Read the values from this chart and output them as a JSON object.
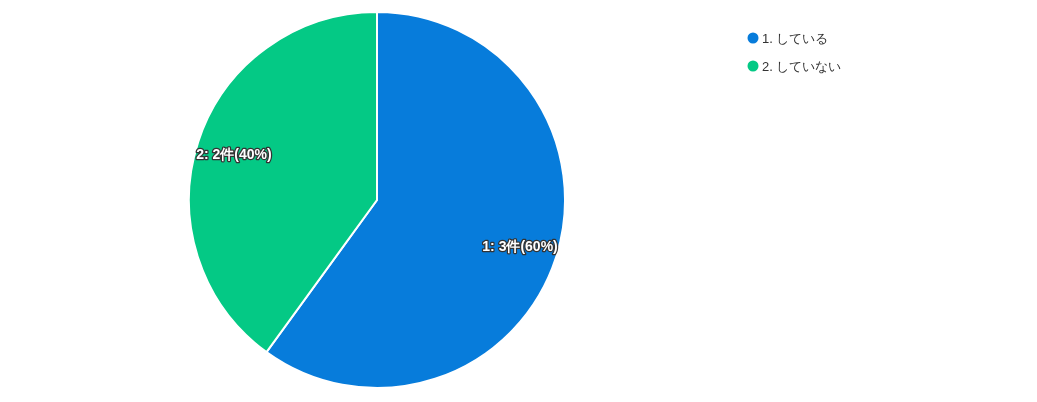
{
  "chart_data": {
    "type": "pie",
    "categories": [
      "1. している",
      "2. していない"
    ],
    "values": [
      3,
      2
    ],
    "colors": [
      "#077cdb",
      "#04c985"
    ],
    "value_labels": [
      "1: 3件(60%)",
      "2: 2件(40%)"
    ],
    "legend": "top right"
  }
}
